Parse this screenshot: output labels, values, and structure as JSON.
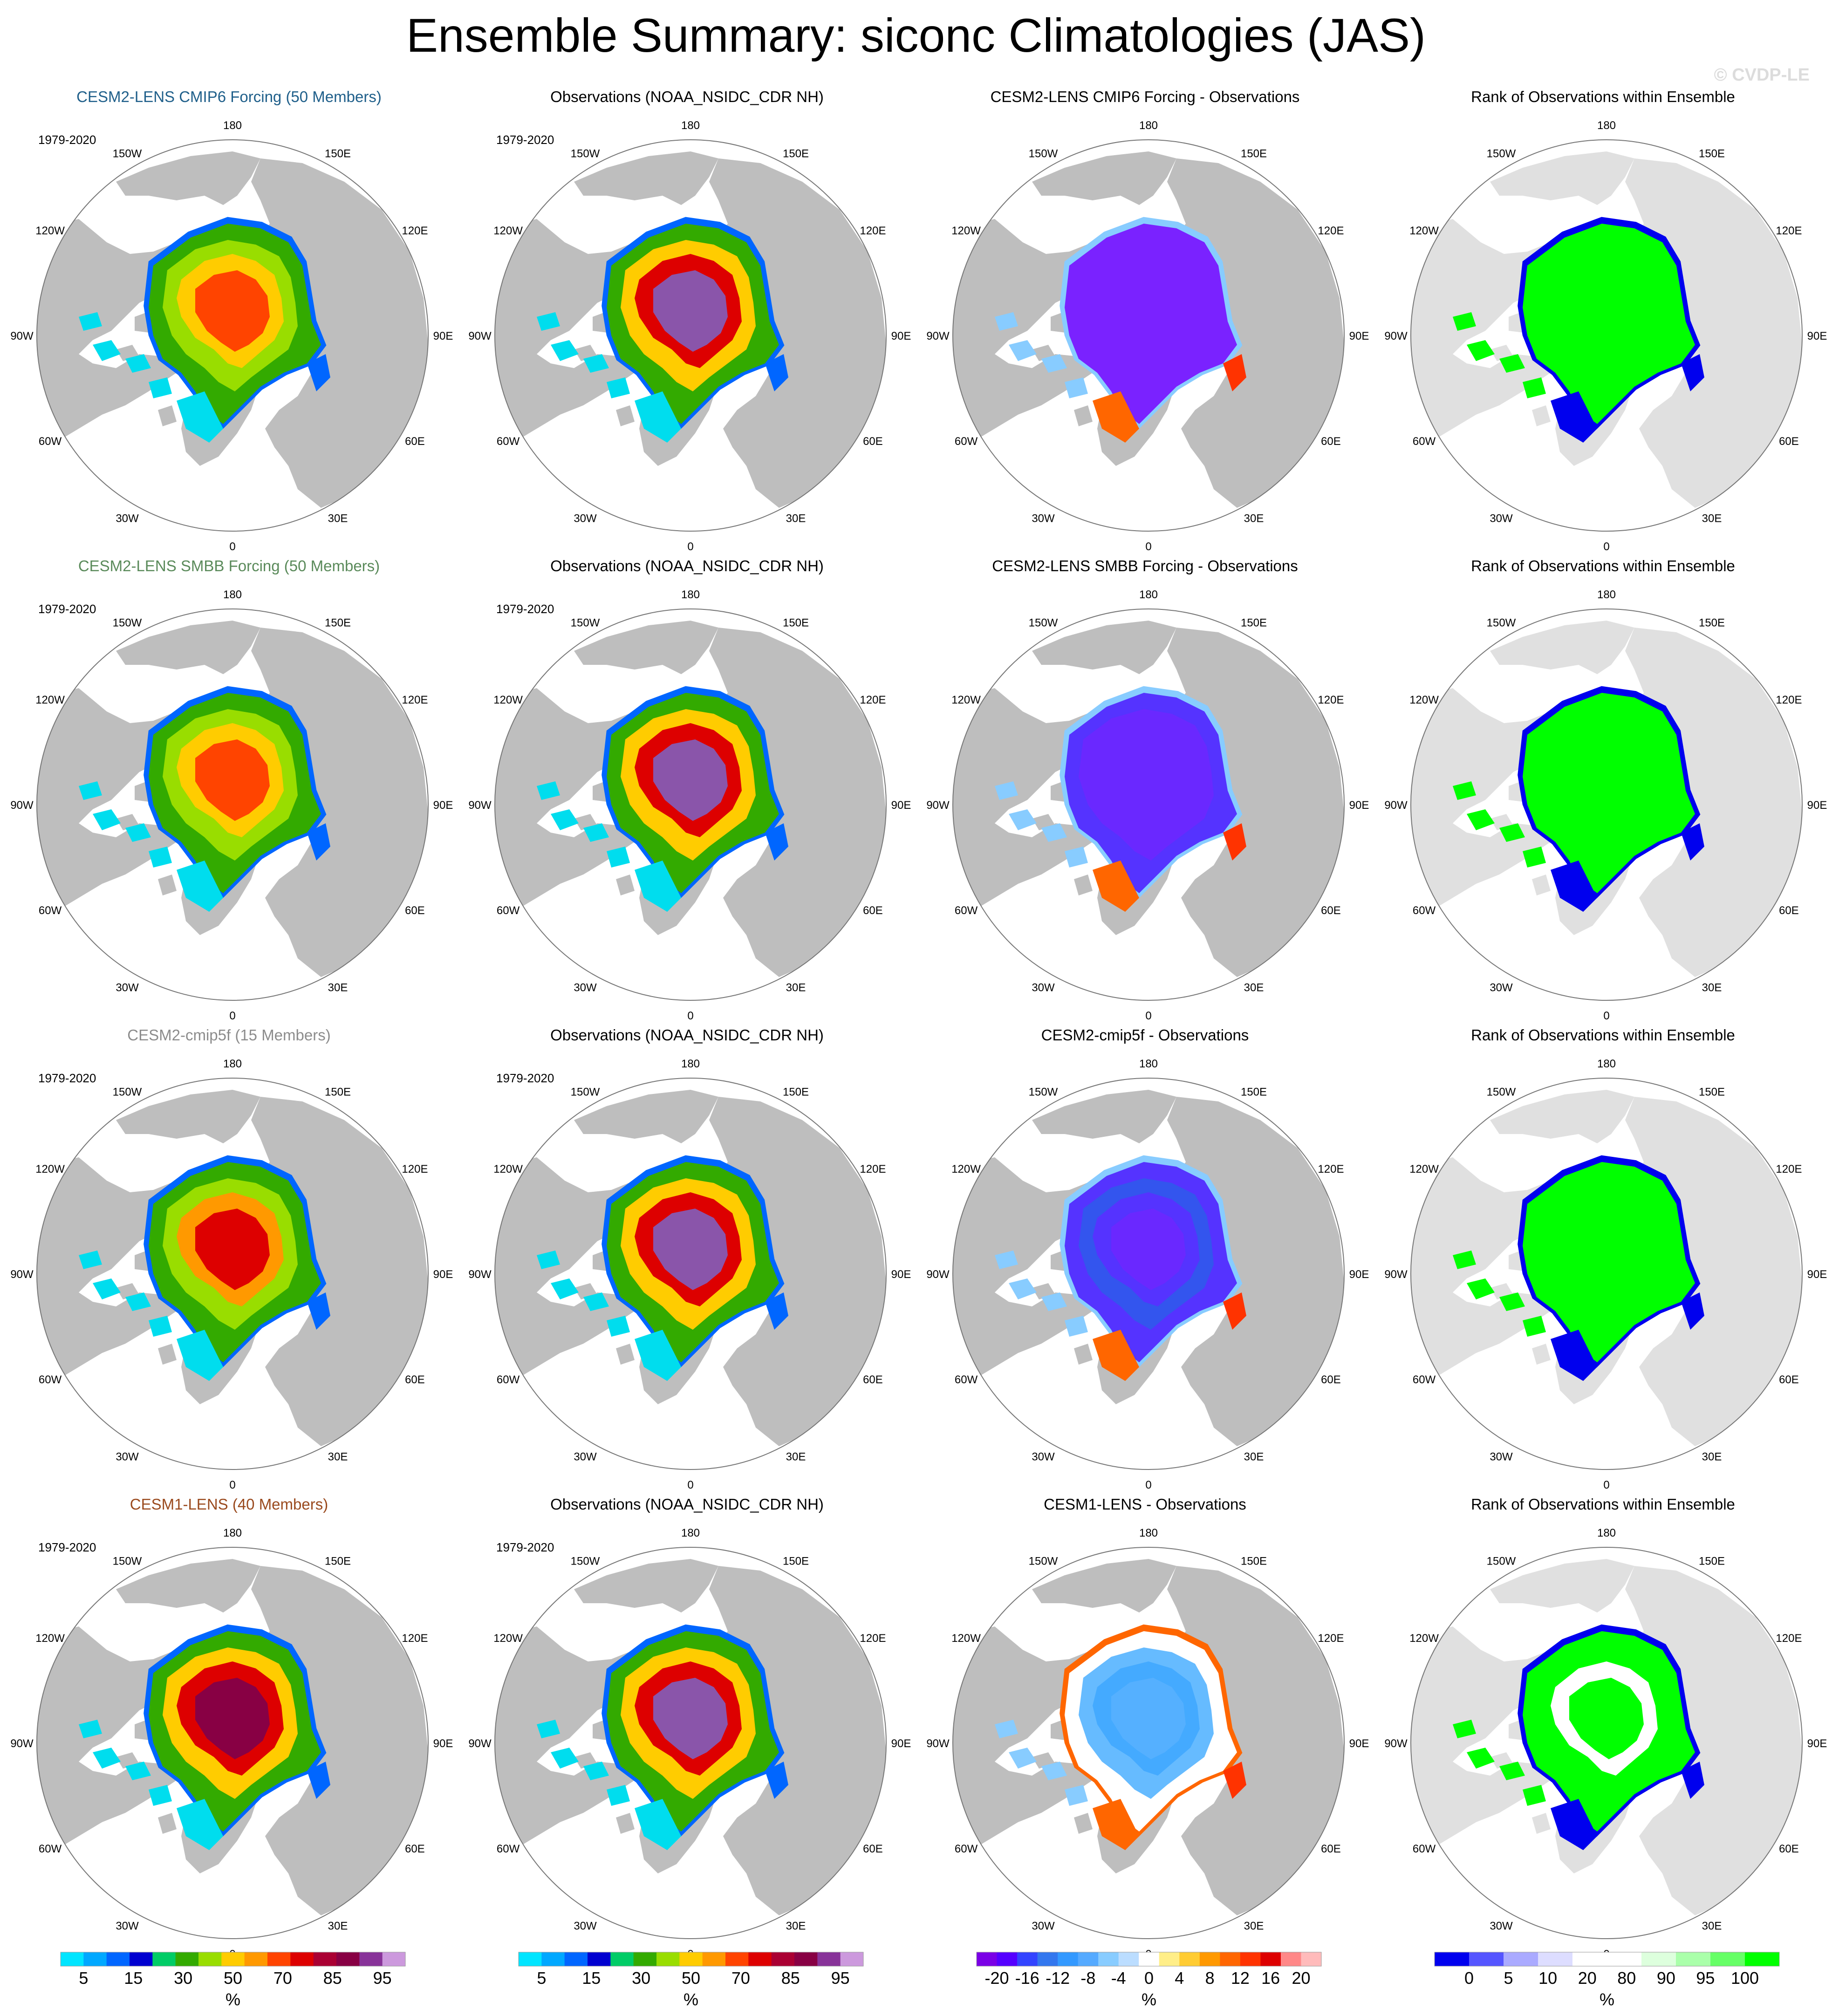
{
  "title": "Ensemble Summary: siconc Climatologies (JAS)",
  "watermark": "© CVDP-LE",
  "period": "1979-2020",
  "lon_labels": [
    "180",
    "150E",
    "120E",
    "90E",
    "60E",
    "30E",
    "0",
    "30W",
    "60W",
    "90W",
    "120W",
    "150W"
  ],
  "colors": {
    "land": "#bebebe",
    "rank_land": "#e0e0e0",
    "row_titles": [
      "#1f5f8a",
      "#5a8a5a",
      "#8c8c8c",
      "#9a4a1e"
    ]
  },
  "rows": [
    {
      "model_title": "CESM2-LENS CMIP6 Forcing (50 Members)",
      "obs_title": "Observations (NOAA_NSIDC_CDR NH)",
      "diff_title": "CESM2-LENS CMIP6 Forcing - Observations",
      "rank_title": "Rank of Observations within Ensemble"
    },
    {
      "model_title": "CESM2-LENS SMBB Forcing (50 Members)",
      "obs_title": "Observations (NOAA_NSIDC_CDR NH)",
      "diff_title": "CESM2-LENS SMBB Forcing - Observations",
      "rank_title": "Rank of Observations within Ensemble"
    },
    {
      "model_title": "CESM2-cmip5f (15 Members)",
      "obs_title": "Observations (NOAA_NSIDC_CDR NH)",
      "diff_title": "CESM2-cmip5f - Observations",
      "rank_title": "Rank of Observations within Ensemble"
    },
    {
      "model_title": "CESM1-LENS (40 Members)",
      "obs_title": "Observations (NOAA_NSIDC_CDR NH)",
      "diff_title": "CESM1-LENS - Observations",
      "rank_title": "Rank of Observations within Ensemble"
    }
  ],
  "colorbars": [
    {
      "unit": "%",
      "labels": [
        "5",
        "15",
        "30",
        "50",
        "70",
        "85",
        "95"
      ],
      "colors": [
        "#00e5ff",
        "#00a8ff",
        "#0066ff",
        "#0000d0",
        "#00cc66",
        "#33aa00",
        "#99dd00",
        "#ffcc00",
        "#ff9900",
        "#ff4400",
        "#dd0000",
        "#aa0033",
        "#880044",
        "#883399",
        "#cc99dd"
      ]
    },
    {
      "unit": "%",
      "labels": [
        "5",
        "15",
        "30",
        "50",
        "70",
        "85",
        "95"
      ],
      "colors": [
        "#00e5ff",
        "#00a8ff",
        "#0066ff",
        "#0000d0",
        "#00cc66",
        "#33aa00",
        "#99dd00",
        "#ffcc00",
        "#ff9900",
        "#ff4400",
        "#dd0000",
        "#aa0033",
        "#880044",
        "#883399",
        "#cc99dd"
      ]
    },
    {
      "unit": "%",
      "labels": [
        "-20",
        "-16",
        "-12",
        "-8",
        "-4",
        "0",
        "4",
        "8",
        "12",
        "16",
        "20"
      ],
      "colors": [
        "#7a00e6",
        "#5500ff",
        "#3344ff",
        "#3377ee",
        "#3399ff",
        "#55aaff",
        "#88ccff",
        "#bbddff",
        "#ffffff",
        "#ffee88",
        "#ffcc33",
        "#ff9900",
        "#ff6600",
        "#ff3300",
        "#dd0000",
        "#ff8888",
        "#ffbbbb"
      ]
    },
    {
      "unit": "%",
      "labels": [
        "0",
        "5",
        "10",
        "20",
        "80",
        "90",
        "95",
        "100"
      ],
      "colors": [
        "#0000ee",
        "#5555ff",
        "#aaaaff",
        "#ddddff",
        "#ffffff",
        "#ffffff",
        "#ddffdd",
        "#aaffaa",
        "#66ff66",
        "#00ff00"
      ]
    }
  ]
}
